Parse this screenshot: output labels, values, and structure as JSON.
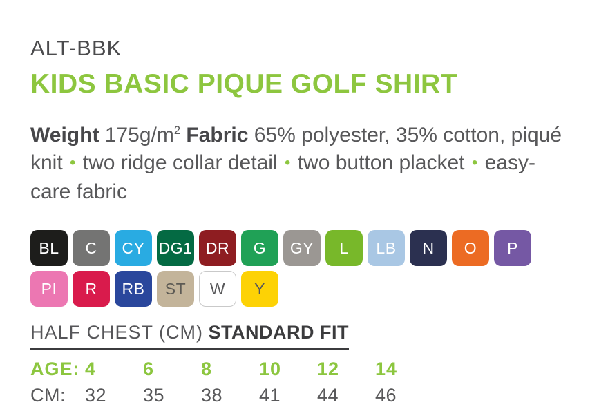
{
  "header": {
    "product_code": "ALT-BBK",
    "title": "KIDS BASIC PIQUE GOLF SHIRT"
  },
  "colors": {
    "accent_green": "#8dc63f",
    "body_text": "#58585a",
    "heading_dark": "#3b3b3d"
  },
  "description": {
    "weight_label": "Weight",
    "weight_value": "175g/m",
    "weight_superscript": "2",
    "fabric_label": "Fabric",
    "fabric_value": "65% polyester, 35% cotton, piqué knit",
    "bullet": "•",
    "features": [
      "two ridge collar detail",
      "two button placket",
      "easy-care fabric"
    ]
  },
  "swatches": [
    {
      "code": "BL",
      "row": 1,
      "bg": "#1d1d1b",
      "fg": "#ffffff"
    },
    {
      "code": "C",
      "row": 1,
      "bg": "#747473",
      "fg": "#ffffff"
    },
    {
      "code": "CY",
      "row": 1,
      "bg": "#29abe2",
      "fg": "#ffffff"
    },
    {
      "code": "DG1",
      "row": 1,
      "bg": "#046a43",
      "fg": "#ffffff"
    },
    {
      "code": "DR",
      "row": 1,
      "bg": "#8e1d21",
      "fg": "#ffffff"
    },
    {
      "code": "G",
      "row": 1,
      "bg": "#20a156",
      "fg": "#ffffff"
    },
    {
      "code": "GY",
      "row": 1,
      "bg": "#9b9793",
      "fg": "#ffffff"
    },
    {
      "code": "L",
      "row": 1,
      "bg": "#78b82a",
      "fg": "#ffffff"
    },
    {
      "code": "LB",
      "row": 1,
      "bg": "#a9c7e4",
      "fg": "#ffffff"
    },
    {
      "code": "N",
      "row": 1,
      "bg": "#2b3050",
      "fg": "#ffffff"
    },
    {
      "code": "O",
      "row": 1,
      "bg": "#ec6b23",
      "fg": "#ffffff"
    },
    {
      "code": "P",
      "row": 1,
      "bg": "#7558a4",
      "fg": "#ffffff"
    },
    {
      "code": "PI",
      "row": 2,
      "bg": "#ec77b2",
      "fg": "#ffffff"
    },
    {
      "code": "R",
      "row": 2,
      "bg": "#d91b4c",
      "fg": "#ffffff"
    },
    {
      "code": "RB",
      "row": 2,
      "bg": "#2a479c",
      "fg": "#ffffff"
    },
    {
      "code": "ST",
      "row": 2,
      "bg": "#c3b49a",
      "fg": "#5c5a54"
    },
    {
      "code": "W",
      "row": 2,
      "bg": "#ffffff",
      "fg": "#58585a",
      "border": "#c9c9c9"
    },
    {
      "code": "Y",
      "row": 2,
      "bg": "#fdd205",
      "fg": "#58585a"
    }
  ],
  "size_table": {
    "heading_regular": "HALF CHEST (CM)",
    "heading_bold": "STANDARD FIT",
    "row_age_label": "AGE:",
    "ages": [
      "4",
      "6",
      "8",
      "10",
      "12",
      "14"
    ],
    "row_cm_label": "CM:",
    "cms": [
      "32",
      "35",
      "38",
      "41",
      "44",
      "46"
    ]
  }
}
